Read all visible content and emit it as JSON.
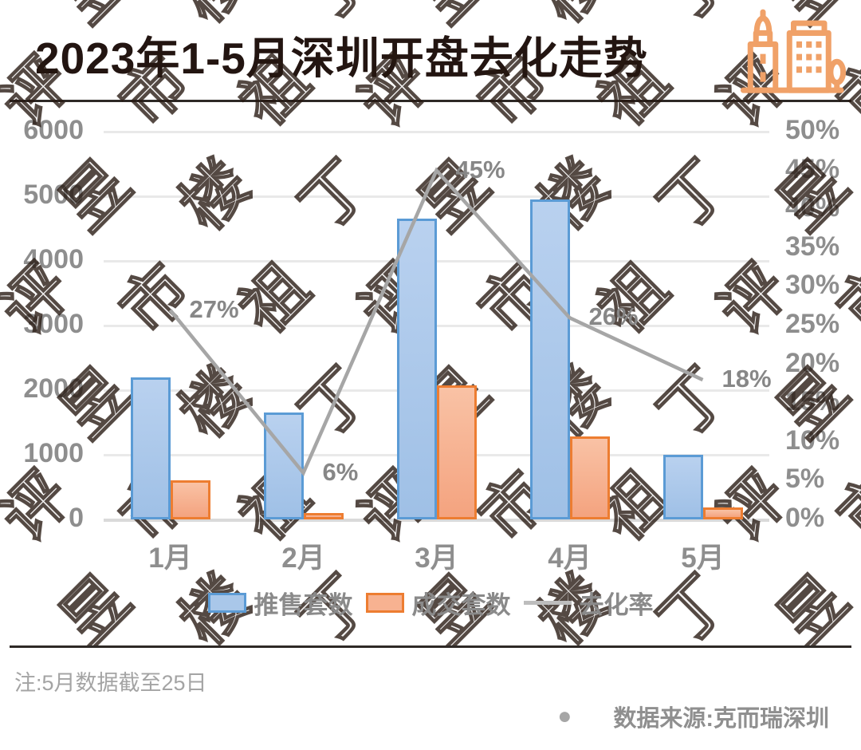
{
  "title": "2023年1-5月深圳开盘去化走势",
  "watermark": {
    "text": "丁祖昱评楼市"
  },
  "chart_data": {
    "type": "bar",
    "categories": [
      "1月",
      "2月",
      "3月",
      "4月",
      "5月"
    ],
    "series": [
      {
        "name": "推售套数",
        "type": "bar",
        "axis": "left",
        "fill": "#a9c7e9",
        "border": "#5b9bd5",
        "values": [
          2200,
          1650,
          4650,
          4950,
          1000
        ]
      },
      {
        "name": "成交套数",
        "type": "bar",
        "axis": "left",
        "fill": "#f7b291",
        "border": "#ed7d31",
        "values": [
          600,
          100,
          2080,
          1290,
          180
        ]
      },
      {
        "name": "去化率",
        "type": "line",
        "axis": "right",
        "color": "#a6a6a6",
        "values": [
          27,
          6,
          45,
          26,
          18
        ],
        "point_labels": [
          "27%",
          "6%",
          "45%",
          "26%",
          "18%"
        ]
      }
    ],
    "left_axis": {
      "min": 0,
      "max": 6000,
      "step": 1000,
      "ticks": [
        "0",
        "1000",
        "2000",
        "3000",
        "4000",
        "5000",
        "6000"
      ]
    },
    "right_axis": {
      "min": 0,
      "max": 50,
      "step": 5,
      "ticks": [
        "0%",
        "5%",
        "10%",
        "15%",
        "20%",
        "25%",
        "30%",
        "35%",
        "40%",
        "45%",
        "50%"
      ]
    },
    "grid": "horizontal-white",
    "legend_position": "bottom"
  },
  "note": "注:5月数据截至25日",
  "source": {
    "bullet": "●",
    "text": "数据来源:克而瑞深圳"
  },
  "colors": {
    "title": "#231511",
    "bar_blue_fill": "#a9c7e9",
    "bar_blue_border": "#5b9bd5",
    "bar_orange_fill": "#f7b291",
    "bar_orange_border": "#ed7d31",
    "line_gray": "#a6a6a6",
    "axis_text": "#8e8e8e",
    "icon_orange": "#f0a168"
  }
}
